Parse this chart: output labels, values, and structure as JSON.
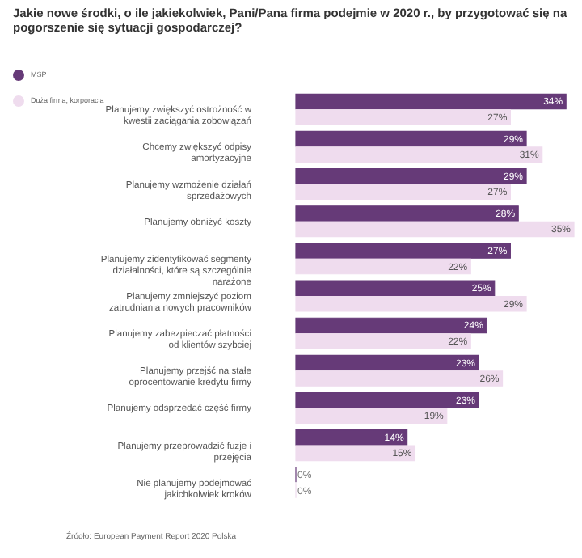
{
  "chart_data": {
    "type": "bar",
    "orientation": "horizontal",
    "title": "Jakie nowe środki, o ile jakiekolwiek, Pani/Pana firma podejmie w 2020 r., by przygotować się na pogorszenie się sytuacji gospodarczej?",
    "categories": [
      "Planujemy zwiększyć ostrożność w kwestii zaciągania zobowiązań",
      "Chcemy zwiększyć odpisy amortyzacyjne",
      "Planujemy wzmożenie działań sprzedażowych",
      "Planujemy obniżyć koszty",
      "Planujemy zidentyfikować segmenty działalności, które są szczególnie narażone",
      "Planujemy zmniejszyć poziom zatrudniania nowych pracowników",
      "Planujemy zabezpieczać płatności od klientów szybciej",
      "Planujemy przejść na stałe oprocentowanie kredytu firmy",
      "Planujemy odsprzedać część firmy",
      "Planujemy przeprowadzić fuzje i przejęcia",
      "Nie planujemy podejmować jakichkolwiek kroków"
    ],
    "series": [
      {
        "name": "MSP",
        "color": "#663a78",
        "values": [
          34,
          29,
          29,
          28,
          27,
          25,
          24,
          23,
          23,
          14,
          0
        ],
        "value_labels": [
          "34%",
          "29%",
          "29%",
          "28%",
          "27%",
          "25%",
          "24%",
          "23%",
          "23%",
          "14%",
          "0%"
        ]
      },
      {
        "name": "Duża firma, korporacja",
        "color": "#efdcee",
        "values": [
          27,
          31,
          27,
          35,
          22,
          29,
          22,
          26,
          19,
          15,
          0
        ],
        "value_labels": [
          "27%",
          "31%",
          "27%",
          "35%",
          "22%",
          "29%",
          "22%",
          "26%",
          "19%",
          "15%",
          "0%"
        ]
      }
    ],
    "legend": "top left",
    "grid": false,
    "annotations": [
      "Źródło: European Payment Report 2020 Polska"
    ]
  }
}
